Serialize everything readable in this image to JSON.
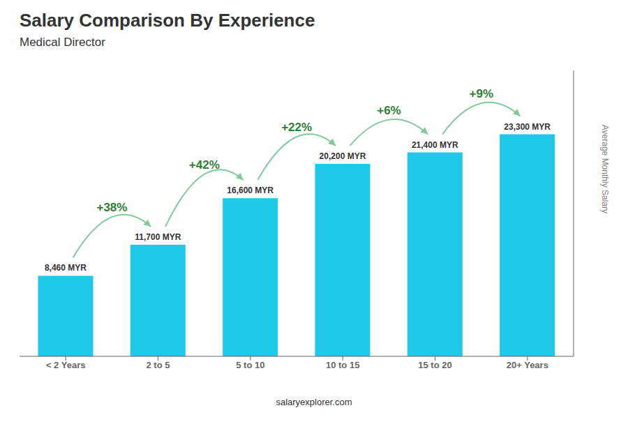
{
  "chart_data": {
    "type": "bar",
    "title": "Salary Comparison By Experience",
    "subtitle": "Medical Director",
    "ylabel": "Average Monthly Salary",
    "categories": [
      "< 2 Years",
      "2 to 5",
      "5 to 10",
      "10 to 15",
      "15 to 20",
      "20+ Years"
    ],
    "values": [
      8460,
      11700,
      16600,
      20200,
      21400,
      23300
    ],
    "value_labels": [
      "8,460 MYR",
      "11,700 MYR",
      "16,600 MYR",
      "20,200 MYR",
      "21,400 MYR",
      "23,300 MYR"
    ],
    "data_labels": true,
    "annotations": [
      "+38%",
      "+42%",
      "+22%",
      "+6%",
      "+9%"
    ],
    "watermark": "salaryexplorer.com",
    "color": "#1EC8E8",
    "ylim": [
      0,
      30000
    ],
    "tick_labels": "x",
    "grid": false
  }
}
